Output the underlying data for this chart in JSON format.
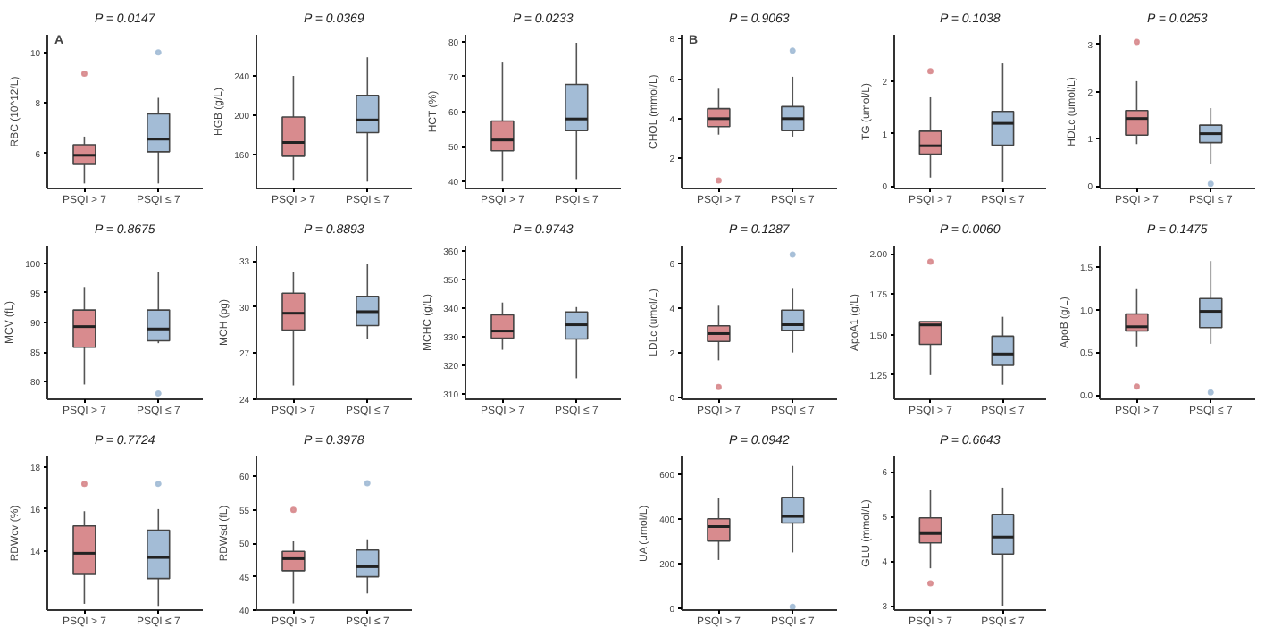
{
  "chart_data": [
    {
      "type": "box",
      "title": "P = 0.0147",
      "ylabel": "RBC (10^12/L)",
      "annotations": [
        "A"
      ],
      "categories": [
        "PSQI > 7",
        "PSQI ≤ 7"
      ],
      "colors": [
        "#d88b8e",
        "#a3bcd6"
      ],
      "ylim": [
        4.6,
        10.7
      ],
      "yticks": [
        6,
        8,
        10
      ],
      "grid": false,
      "boxes": [
        {
          "low": 4.8,
          "q1": 5.56,
          "median": 5.92,
          "q3": 6.34,
          "high": 6.66,
          "outliers": [
            9.16
          ]
        },
        {
          "low": 4.8,
          "q1": 6.06,
          "median": 6.56,
          "q3": 7.56,
          "high": 8.2,
          "outliers": [
            10.0
          ]
        }
      ]
    },
    {
      "type": "box",
      "title": "P = 0.0369",
      "ylabel": "HGB (g/L)",
      "categories": [
        "PSQI > 7",
        "PSQI ≤ 7"
      ],
      "colors": [
        "#d88b8e",
        "#a3bcd6"
      ],
      "ylim": [
        125,
        282
      ],
      "yticks": [
        160,
        200,
        240
      ],
      "grid": false,
      "boxes": [
        {
          "low": 133,
          "q1": 158,
          "median": 172,
          "q3": 198,
          "high": 240
        },
        {
          "low": 132,
          "q1": 182,
          "median": 195,
          "q3": 220,
          "high": 259
        }
      ]
    },
    {
      "type": "box",
      "title": "P = 0.0233",
      "ylabel": "HCT (%)",
      "categories": [
        "PSQI > 7",
        "PSQI ≤ 7"
      ],
      "colors": [
        "#d88b8e",
        "#a3bcd6"
      ],
      "ylim": [
        38,
        82
      ],
      "yticks": [
        40,
        50,
        60,
        70,
        80
      ],
      "grid": false,
      "boxes": [
        {
          "low": 40,
          "q1": 48.8,
          "median": 51.9,
          "q3": 57.3,
          "high": 74.3
        },
        {
          "low": 40.7,
          "q1": 54.6,
          "median": 57.9,
          "q3": 67.8,
          "high": 79.7
        }
      ]
    },
    {
      "type": "box",
      "title": "P = 0.8675",
      "ylabel": "MCV (fL)",
      "categories": [
        "PSQI > 7",
        "PSQI ≤ 7"
      ],
      "colors": [
        "#d88b8e",
        "#a3bcd6"
      ],
      "ylim": [
        77,
        103
      ],
      "yticks": [
        80,
        85,
        90,
        95,
        100
      ],
      "grid": false,
      "boxes": [
        {
          "low": 79.5,
          "q1": 85.8,
          "median": 89.3,
          "q3": 92.1,
          "high": 96
        },
        {
          "low": 86.5,
          "q1": 86.9,
          "median": 88.9,
          "q3": 92.1,
          "high": 98.5,
          "outliers": [
            78
          ]
        }
      ]
    },
    {
      "type": "box",
      "title": "P = 0.8893",
      "ylabel": "MCH (pg)",
      "categories": [
        "PSQI > 7",
        "PSQI ≤ 7"
      ],
      "colors": [
        "#d88b8e",
        "#a3bcd6"
      ],
      "ylim": [
        24,
        34
      ],
      "yticks": [
        24,
        27,
        30,
        33
      ],
      "grid": false,
      "boxes": [
        {
          "low": 24.9,
          "q1": 28.5,
          "median": 29.6,
          "q3": 30.9,
          "high": 32.3
        },
        {
          "low": 27.9,
          "q1": 28.8,
          "median": 29.7,
          "q3": 30.7,
          "high": 32.8
        }
      ]
    },
    {
      "type": "box",
      "title": "P = 0.9743",
      "ylabel": "MCHC (g/L)",
      "categories": [
        "PSQI > 7",
        "PSQI ≤ 7"
      ],
      "colors": [
        "#d88b8e",
        "#a3bcd6"
      ],
      "ylim": [
        308,
        362
      ],
      "yticks": [
        310,
        320,
        330,
        340,
        350,
        360
      ],
      "grid": false,
      "boxes": [
        {
          "low": 325.4,
          "q1": 329.5,
          "median": 332,
          "q3": 337.7,
          "high": 342
        },
        {
          "low": 315.4,
          "q1": 329.2,
          "median": 334.2,
          "q3": 338.7,
          "high": 340.4
        }
      ]
    },
    {
      "type": "box",
      "title": "P = 0.7724",
      "ylabel": "RDWcv (%)",
      "categories": [
        "PSQI > 7",
        "PSQI ≤ 7"
      ],
      "colors": [
        "#d88b8e",
        "#a3bcd6"
      ],
      "ylim": [
        11.2,
        18.5
      ],
      "yticks": [
        14,
        16,
        18
      ],
      "grid": false,
      "boxes": [
        {
          "low": 11.5,
          "q1": 12.9,
          "median": 13.9,
          "q3": 15.2,
          "high": 15.9,
          "outliers": [
            17.2
          ]
        },
        {
          "low": 11.4,
          "q1": 12.7,
          "median": 13.7,
          "q3": 15.0,
          "high": 16,
          "outliers": [
            17.2
          ]
        }
      ]
    },
    {
      "type": "box",
      "title": "P = 0.3978",
      "ylabel": "RDWsd (fL)",
      "categories": [
        "PSQI > 7",
        "PSQI ≤ 7"
      ],
      "colors": [
        "#d88b8e",
        "#a3bcd6"
      ],
      "ylim": [
        40,
        63
      ],
      "yticks": [
        40,
        45,
        50,
        55,
        60
      ],
      "grid": false,
      "boxes": [
        {
          "low": 41,
          "q1": 45.9,
          "median": 47.7,
          "q3": 48.8,
          "high": 50.3,
          "outliers": [
            55
          ]
        },
        {
          "low": 42.5,
          "q1": 45,
          "median": 46.5,
          "q3": 49,
          "high": 50.6,
          "outliers": [
            59
          ]
        }
      ]
    },
    {
      "type": "box",
      "title": "P = 0.9063",
      "ylabel": "CHOL (mmol/L)",
      "annotations": [
        "B"
      ],
      "categories": [
        "PSQI > 7",
        "PSQI ≤ 7"
      ],
      "colors": [
        "#d88b8e",
        "#a3bcd6"
      ],
      "ylim": [
        0.5,
        8.2
      ],
      "yticks": [
        2,
        4,
        6,
        8
      ],
      "grid": false,
      "boxes": [
        {
          "low": 3.2,
          "q1": 3.6,
          "median": 4.0,
          "q3": 4.5,
          "high": 5.5,
          "outliers": [
            0.9
          ]
        },
        {
          "low": 3.1,
          "q1": 3.4,
          "median": 4.0,
          "q3": 4.6,
          "high": 6.1,
          "outliers": [
            7.4
          ]
        }
      ]
    },
    {
      "type": "box",
      "title": "P = 0.1038",
      "ylabel": "TG (umol/L)",
      "categories": [
        "PSQI > 7",
        "PSQI ≤ 7"
      ],
      "colors": [
        "#d88b8e",
        "#a3bcd6"
      ],
      "ylim": [
        -0.05,
        2.9
      ],
      "yticks": [
        0,
        1,
        2
      ],
      "grid": false,
      "boxes": [
        {
          "low": 0.16,
          "q1": 0.61,
          "median": 0.77,
          "q3": 1.05,
          "high": 1.7,
          "outliers": [
            2.2
          ]
        },
        {
          "low": 0.07,
          "q1": 0.78,
          "median": 1.2,
          "q3": 1.43,
          "high": 2.35
        }
      ]
    },
    {
      "type": "box",
      "title": "P = 0.0253",
      "ylabel": "HDLc (umol/L)",
      "categories": [
        "PSQI > 7",
        "PSQI ≤ 7"
      ],
      "colors": [
        "#d88b8e",
        "#a3bcd6"
      ],
      "ylim": [
        -0.05,
        3.2
      ],
      "yticks": [
        0,
        1,
        2,
        3
      ],
      "grid": false,
      "boxes": [
        {
          "low": 0.89,
          "q1": 1.08,
          "median": 1.43,
          "q3": 1.6,
          "high": 2.22,
          "outliers": [
            3.05
          ]
        },
        {
          "low": 0.46,
          "q1": 0.92,
          "median": 1.11,
          "q3": 1.29,
          "high": 1.65,
          "outliers": [
            0.05
          ]
        }
      ]
    },
    {
      "type": "box",
      "title": "P = 0.1287",
      "ylabel": "LDLc (umol/L)",
      "categories": [
        "PSQI > 7",
        "PSQI ≤ 7"
      ],
      "colors": [
        "#d88b8e",
        "#a3bcd6"
      ],
      "ylim": [
        -0.1,
        6.8
      ],
      "yticks": [
        0,
        2,
        4,
        6
      ],
      "grid": false,
      "boxes": [
        {
          "low": 1.65,
          "q1": 2.5,
          "median": 2.85,
          "q3": 3.2,
          "high": 4.1,
          "outliers": [
            0.45
          ]
        },
        {
          "low": 2.0,
          "q1": 3.0,
          "median": 3.25,
          "q3": 3.9,
          "high": 4.9,
          "outliers": [
            6.4
          ]
        }
      ]
    },
    {
      "type": "box",
      "title": "P = 0.0060",
      "ylabel": "ApoA1 (g/L)",
      "categories": [
        "PSQI > 7",
        "PSQI ≤ 7"
      ],
      "colors": [
        "#d88b8e",
        "#a3bcd6"
      ],
      "ylim": [
        1.1,
        2.05
      ],
      "yticks": [
        {
          "value": 1.25,
          "label": "1.25"
        },
        {
          "value": 1.5,
          "label": "1.50"
        },
        {
          "value": 1.75,
          "label": "1.75"
        },
        {
          "value": 2.0,
          "label": "2.00"
        }
      ],
      "grid": false,
      "boxes": [
        {
          "low": 1.25,
          "q1": 1.44,
          "median": 1.56,
          "q3": 1.58,
          "high": 1.58,
          "outliers": [
            1.95
          ]
        },
        {
          "low": 1.19,
          "q1": 1.31,
          "median": 1.38,
          "q3": 1.49,
          "high": 1.61
        }
      ]
    },
    {
      "type": "box",
      "title": "P = 0.1475",
      "ylabel": "ApoB (g/L)",
      "categories": [
        "PSQI > 7",
        "PSQI ≤ 7"
      ],
      "colors": [
        "#d88b8e",
        "#a3bcd6"
      ],
      "ylim": [
        -0.05,
        1.75
      ],
      "yticks": [
        {
          "value": 0,
          "label": "0.0"
        },
        {
          "value": 0.5,
          "label": "0.5"
        },
        {
          "value": 1,
          "label": "1.0"
        },
        {
          "value": 1.5,
          "label": "1.5"
        }
      ],
      "grid": false,
      "boxes": [
        {
          "low": 0.57,
          "q1": 0.75,
          "median": 0.8,
          "q3": 0.95,
          "high": 1.25,
          "outliers": [
            0.1
          ]
        },
        {
          "low": 0.6,
          "q1": 0.79,
          "median": 0.98,
          "q3": 1.13,
          "high": 1.57,
          "outliers": [
            0.03
          ]
        }
      ]
    },
    {
      "type": "box",
      "title": "P = 0.0942",
      "ylabel": "UA (umol/L)",
      "categories": [
        "PSQI > 7",
        "PSQI ≤ 7"
      ],
      "colors": [
        "#d88b8e",
        "#a3bcd6"
      ],
      "ylim": [
        -10,
        680
      ],
      "yticks": [
        0,
        200,
        400,
        600
      ],
      "grid": false,
      "boxes": [
        {
          "low": 215,
          "q1": 300,
          "median": 365,
          "q3": 400,
          "high": 492
        },
        {
          "low": 249,
          "q1": 381,
          "median": 411,
          "q3": 496,
          "high": 637,
          "outliers": [
            5
          ]
        }
      ]
    },
    {
      "type": "box",
      "title": "P = 0.6643",
      "ylabel": "GLU (mmol/L)",
      "categories": [
        "PSQI > 7",
        "PSQI ≤ 7"
      ],
      "colors": [
        "#d88b8e",
        "#a3bcd6"
      ],
      "ylim": [
        2.9,
        6.35
      ],
      "yticks": [
        3,
        4,
        5,
        6
      ],
      "grid": false,
      "boxes": [
        {
          "low": 3.84,
          "q1": 4.41,
          "median": 4.62,
          "q3": 4.97,
          "high": 5.6,
          "outliers": [
            3.5
          ]
        },
        {
          "low": 3.0,
          "q1": 4.16,
          "median": 4.54,
          "q3": 5.05,
          "high": 5.65
        }
      ]
    }
  ]
}
